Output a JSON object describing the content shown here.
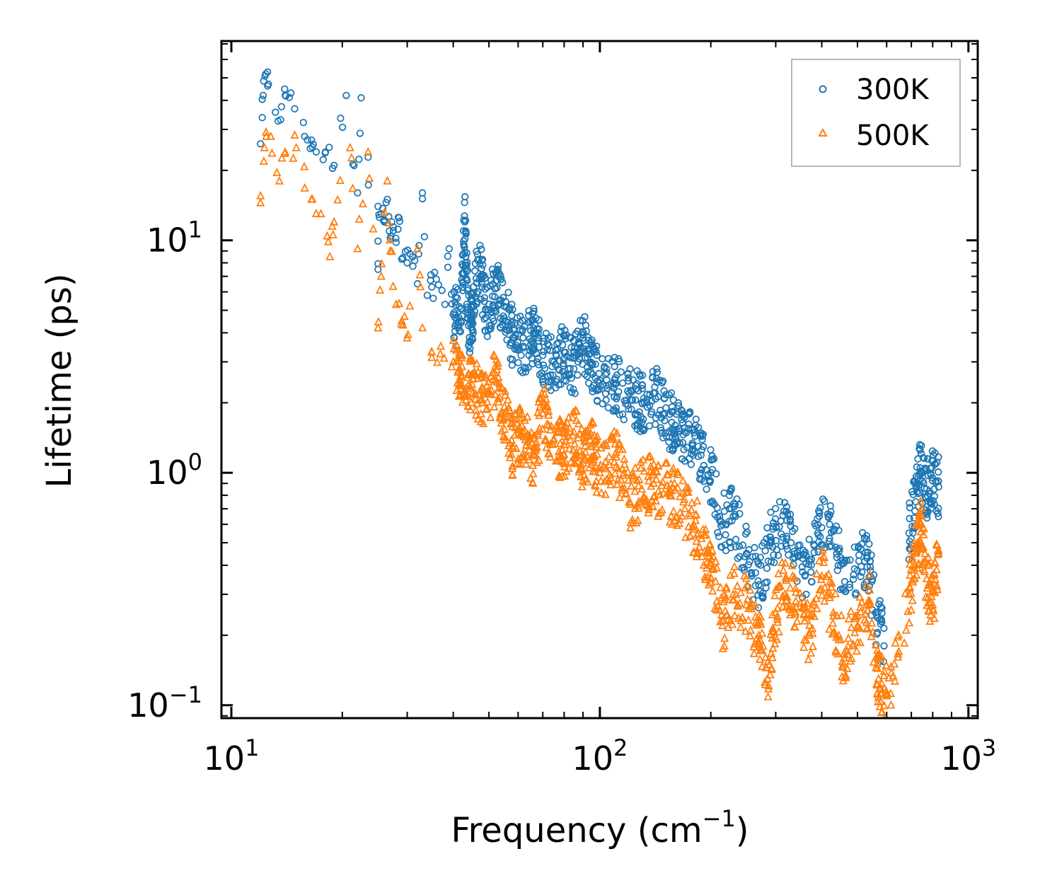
{
  "chart_data": {
    "type": "scatter",
    "title": "",
    "xlabel": "Frequency (cm",
    "xlabel_sup": "−1",
    "xlabel_close": ")",
    "ylabel": "Lifetime (ps)",
    "xscale": "log",
    "yscale": "log",
    "xlim": [
      9.4,
      1060
    ],
    "ylim": [
      0.088,
      72
    ],
    "legend_position": "top-right",
    "x_ticks": [
      {
        "value": 10,
        "base": "10",
        "exp": "1"
      },
      {
        "value": 100,
        "base": "10",
        "exp": "2"
      },
      {
        "value": 1000,
        "base": "10",
        "exp": "3"
      }
    ],
    "y_ticks": [
      {
        "value": 0.1,
        "base": "10",
        "exp": "−1"
      },
      {
        "value": 1,
        "base": "10",
        "exp": "0"
      },
      {
        "value": 10,
        "base": "10",
        "exp": "1"
      }
    ],
    "series": [
      {
        "name": "300K",
        "color": "#1f77b4",
        "marker": "circle-open",
        "points": [
          [
            12.0,
            26
          ],
          [
            12.2,
            42
          ],
          [
            12.4,
            52
          ],
          [
            12.6,
            47
          ],
          [
            13.6,
            33
          ],
          [
            14.0,
            42
          ],
          [
            14.5,
            43
          ],
          [
            15.8,
            28
          ],
          [
            16.5,
            27
          ],
          [
            17.0,
            24
          ],
          [
            18.0,
            24
          ],
          [
            19.0,
            21
          ],
          [
            20.5,
            42
          ],
          [
            22.0,
            16
          ],
          [
            22.5,
            41
          ],
          [
            25.0,
            7.5
          ],
          [
            25.0,
            14
          ],
          [
            25.5,
            13
          ],
          [
            26.0,
            12
          ],
          [
            26.5,
            15
          ],
          [
            27.0,
            10.2
          ],
          [
            27.5,
            11
          ],
          [
            28.0,
            9.8
          ],
          [
            28.5,
            12.5
          ],
          [
            29.0,
            8.3
          ],
          [
            30.0,
            8.0
          ],
          [
            31.0,
            8.5
          ],
          [
            32.0,
            6.5
          ],
          [
            33.0,
            16
          ],
          [
            34.0,
            5.8
          ],
          [
            35.0,
            6.3
          ],
          [
            36.0,
            6.8
          ],
          [
            38.0,
            5.3
          ],
          [
            39.0,
            9.2
          ],
          [
            40.0,
            4.8
          ],
          [
            42.0,
            4.5
          ],
          [
            43.0,
            12
          ],
          [
            44.0,
            4.3
          ],
          [
            45.0,
            4.7
          ],
          [
            47.0,
            8.3
          ],
          [
            49.0,
            5.0
          ],
          [
            52.0,
            6.2
          ],
          [
            55.0,
            5.2
          ],
          [
            58.0,
            3.8
          ],
          [
            62.0,
            3.5
          ],
          [
            66.0,
            4.0
          ],
          [
            70.0,
            3.2
          ],
          [
            75.0,
            3.0
          ],
          [
            80.0,
            3.3
          ],
          [
            85.0,
            2.8
          ],
          [
            90.0,
            3.8
          ],
          [
            95.0,
            2.9
          ],
          [
            100.0,
            2.5
          ],
          [
            110.0,
            2.4
          ],
          [
            120.0,
            2.2
          ],
          [
            130.0,
            2.0
          ],
          [
            140.0,
            2.2
          ],
          [
            150.0,
            1.8
          ],
          [
            160.0,
            1.6
          ],
          [
            170.0,
            1.5
          ],
          [
            185.0,
            1.3
          ],
          [
            200.0,
            1.0
          ],
          [
            215.0,
            0.6
          ],
          [
            230.0,
            0.65
          ],
          [
            250.0,
            0.45
          ],
          [
            270.0,
            0.33
          ],
          [
            290.0,
            0.5
          ],
          [
            310.0,
            0.62
          ],
          [
            330.0,
            0.5
          ],
          [
            360.0,
            0.36
          ],
          [
            390.0,
            0.55
          ],
          [
            420.0,
            0.6
          ],
          [
            450.0,
            0.4
          ],
          [
            500.0,
            0.38
          ],
          [
            530.0,
            0.44
          ],
          [
            560.0,
            0.25
          ],
          [
            590.0,
            0.18
          ],
          [
            690.0,
            0.55
          ],
          [
            720.0,
            0.75
          ],
          [
            740.0,
            1.05
          ],
          [
            770.0,
            0.85
          ],
          [
            800.0,
            0.95
          ],
          [
            830.0,
            0.87
          ]
        ]
      },
      {
        "name": "500K",
        "color": "#ff7f0e",
        "marker": "triangle-open",
        "points": [
          [
            12.0,
            14.5
          ],
          [
            12.3,
            25
          ],
          [
            12.8,
            28
          ],
          [
            13.5,
            18
          ],
          [
            14.0,
            24
          ],
          [
            15.0,
            25
          ],
          [
            16.5,
            15
          ],
          [
            17.5,
            13
          ],
          [
            18.5,
            8.5
          ],
          [
            19.0,
            12
          ],
          [
            21.0,
            25
          ],
          [
            22.0,
            9.2
          ],
          [
            23.5,
            24
          ],
          [
            25.0,
            4.2
          ],
          [
            25.5,
            7.0
          ],
          [
            26.5,
            18
          ],
          [
            27.0,
            9.0
          ],
          [
            28.0,
            5.3
          ],
          [
            29.0,
            4.5
          ],
          [
            30.0,
            3.8
          ],
          [
            32.0,
            9.2
          ],
          [
            33.0,
            4.2
          ],
          [
            35.0,
            3.3
          ],
          [
            37.0,
            3.5
          ],
          [
            40.0,
            3.0
          ],
          [
            42.0,
            2.6
          ],
          [
            45.0,
            2.4
          ],
          [
            48.0,
            2.0
          ],
          [
            52.0,
            2.5
          ],
          [
            55.0,
            1.8
          ],
          [
            58.0,
            1.3
          ],
          [
            62.0,
            1.5
          ],
          [
            66.0,
            1.2
          ],
          [
            70.0,
            1.8
          ],
          [
            75.0,
            1.4
          ],
          [
            80.0,
            1.2
          ],
          [
            85.0,
            1.5
          ],
          [
            90.0,
            1.1
          ],
          [
            95.0,
            1.3
          ],
          [
            100.0,
            1.0
          ],
          [
            110.0,
            1.2
          ],
          [
            120.0,
            0.75
          ],
          [
            130.0,
            0.85
          ],
          [
            140.0,
            0.9
          ],
          [
            155.0,
            0.8
          ],
          [
            170.0,
            0.7
          ],
          [
            185.0,
            0.55
          ],
          [
            200.0,
            0.4
          ],
          [
            215.0,
            0.22
          ],
          [
            230.0,
            0.3
          ],
          [
            250.0,
            0.27
          ],
          [
            270.0,
            0.2
          ],
          [
            285.0,
            0.13
          ],
          [
            300.0,
            0.25
          ],
          [
            320.0,
            0.35
          ],
          [
            340.0,
            0.28
          ],
          [
            370.0,
            0.2
          ],
          [
            400.0,
            0.36
          ],
          [
            430.0,
            0.25
          ],
          [
            460.0,
            0.16
          ],
          [
            500.0,
            0.22
          ],
          [
            540.0,
            0.28
          ],
          [
            570.0,
            0.13
          ],
          [
            600.0,
            0.11
          ],
          [
            690.0,
            0.3
          ],
          [
            720.0,
            0.45
          ],
          [
            740.0,
            0.6
          ],
          [
            770.0,
            0.35
          ],
          [
            800.0,
            0.27
          ],
          [
            830.0,
            0.45
          ]
        ]
      }
    ]
  }
}
